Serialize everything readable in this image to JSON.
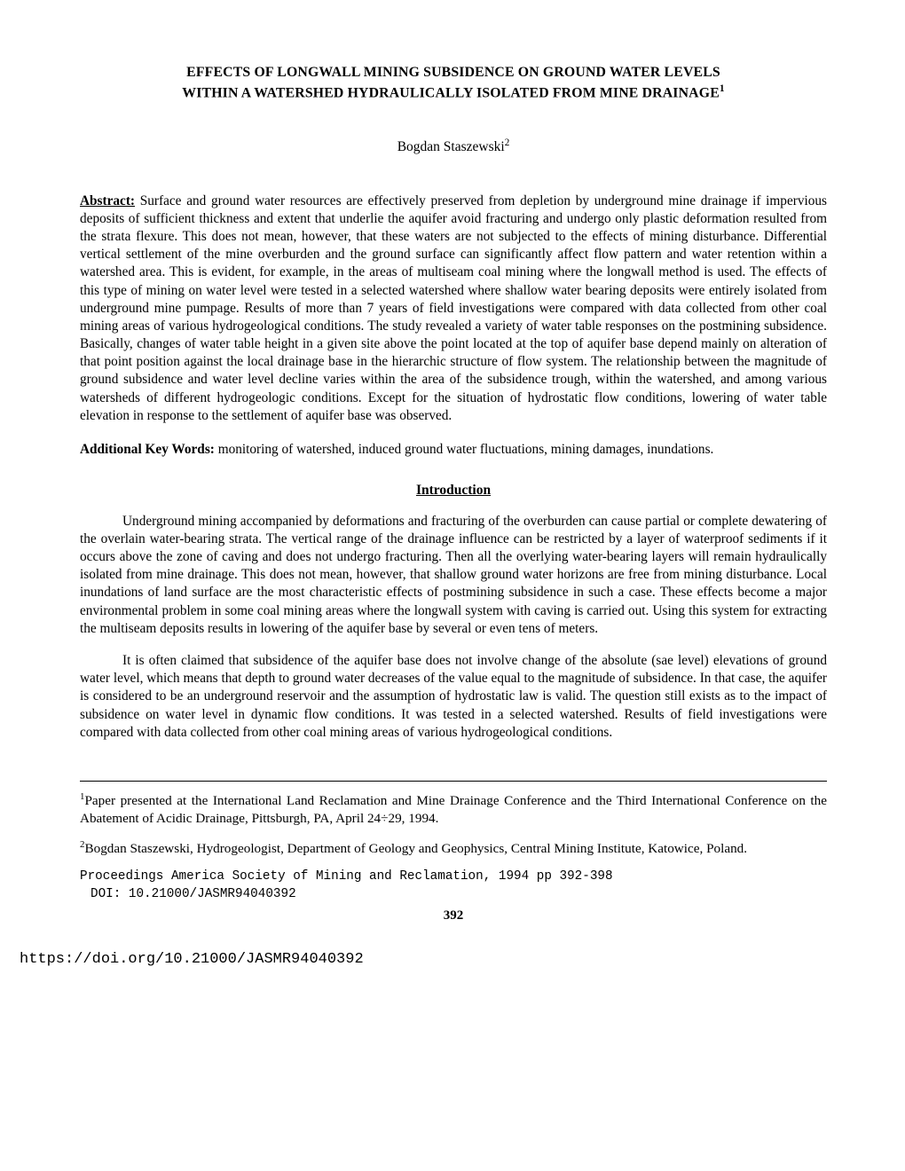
{
  "title_line1": "EFFECTS OF LONGWALL MINING SUBSIDENCE ON GROUND WATER LEVELS",
  "title_line2": "WITHIN A WATERSHED HYDRAULICALLY ISOLATED FROM MINE DRAINAGE",
  "title_sup": "1",
  "author": "Bogdan Staszewski",
  "author_sup": "2",
  "abstract_label": "Abstract:",
  "abstract_text": " Surface and ground water resources are effectively preserved from depletion by underground mine drainage if impervious deposits of sufficient thickness and extent that underlie the aquifer avoid fracturing and undergo only plastic deformation resulted from the strata flexure. This does not mean, however, that these waters are not subjected to the effects of mining disturbance. Differential vertical settlement of the mine overburden and the ground surface can significantly affect flow pattern and water retention within a watershed area. This is evident, for example, in the areas of multiseam coal mining where the longwall method is used. The effects of this type of mining on water level were tested in a selected watershed where shallow water bearing deposits were entirely isolated from underground mine pumpage. Results of more than 7 years of field investigations were compared with data collected from other coal mining areas of various hydrogeological conditions. The study revealed a variety of water table responses on the postmining subsidence. Basically, changes of water table height in a given site above the point located at the top of aquifer base depend mainly on alteration of that point position against the local drainage base in the hierarchic structure of flow system. The relationship between the magnitude of ground subsidence and water level decline varies within the area of the subsidence trough, within the watershed, and among various watersheds of different hydrogeologic conditions. Except for the situation of hydrostatic flow conditions, lowering of water table elevation in response to the settlement of aquifer base was observed.",
  "keywords_label": "Additional Key Words:",
  "keywords_text": " monitoring of watershed, induced ground water fluctuations, mining damages, inundations.",
  "section_heading": "Introduction",
  "para1": "Underground mining accompanied by deformations and fracturing of the overburden can cause partial or complete dewatering of the overlain water-bearing strata. The vertical range of the drainage influence can be restricted by a layer of waterproof sediments if it occurs above the zone of caving and does not undergo fracturing. Then all the overlying water-bearing layers will remain hydraulically isolated from mine drainage. This does not mean, however, that shallow ground water horizons are free from mining disturbance. Local inundations of land surface are the most characteristic effects of postmining subsidence in such a case. These effects become a major environmental problem in some coal mining areas where the longwall system with caving is carried out. Using this system for extracting the multiseam deposits results in lowering of the aquifer base by several or even tens of meters.",
  "para2": "It is often claimed that subsidence of the aquifer base does not involve change of the absolute (sae level) elevations of ground water level, which means that depth to ground water decreases of the value equal to the magnitude of subsidence. In that case, the aquifer is considered to be an underground reservoir and the assumption of hydrostatic law is valid. The question still exists as to the impact of subsidence on water level in dynamic flow conditions. It was tested in a selected watershed. Results of field investigations were compared with data collected from other coal mining areas of various hydrogeological conditions.",
  "footnote1_sup": "1",
  "footnote1": "Paper presented at the International Land Reclamation and Mine Drainage Conference and the Third International Conference on the Abatement of Acidic Drainage, Pittsburgh, PA, April 24÷29, 1994.",
  "footnote2_sup": "2",
  "footnote2": "Bogdan Staszewski, Hydrogeologist, Department of Geology and Geophysics, Central Mining Institute, Katowice, Poland.",
  "proceedings": "Proceedings America Society of Mining and Reclamation, 1994 pp 392-398",
  "doi": "DOI: 10.21000/JASMR94040392",
  "page_number": "392",
  "doi_url": "https://doi.org/10.21000/JASMR94040392"
}
